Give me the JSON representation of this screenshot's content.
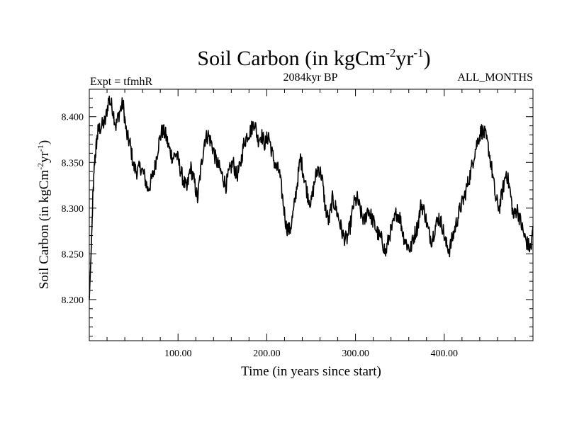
{
  "chart_data": {
    "type": "line",
    "title": {
      "prefix": "Soil Carbon (in kgCm",
      "sup1": "-2",
      "mid": "yr",
      "sup2": "-1",
      "suffix": ")"
    },
    "subtitle_left": "Expt = tfmhR",
    "subtitle_center": "2084kyr BP",
    "subtitle_right": "ALL_MONTHS",
    "xlabel": "Time (in years since start)",
    "ylabel": {
      "prefix": "Soil Carbon (in kgCm",
      "sup1": "-2",
      "mid": "yr",
      "sup2": "-1",
      "suffix": ")"
    },
    "xlim": [
      0,
      500
    ],
    "ylim": [
      8.155,
      8.43
    ],
    "xticks": [
      100,
      200,
      300,
      400
    ],
    "xtick_labels": [
      "100.00",
      "200.00",
      "300.00",
      "400.00"
    ],
    "yticks": [
      8.2,
      8.25,
      8.3,
      8.35,
      8.4
    ],
    "ytick_labels": [
      "8.200",
      "8.250",
      "8.300",
      "8.350",
      "8.400"
    ],
    "grid": false,
    "series": [
      {
        "name": "Soil Carbon",
        "color": "#000000",
        "x": [
          0,
          2,
          4,
          6,
          8,
          10,
          14,
          18,
          22,
          26,
          30,
          34,
          38,
          42,
          46,
          50,
          54,
          58,
          62,
          66,
          70,
          74,
          78,
          82,
          86,
          90,
          94,
          98,
          102,
          106,
          110,
          114,
          118,
          122,
          126,
          130,
          134,
          138,
          142,
          146,
          150,
          154,
          158,
          162,
          166,
          170,
          174,
          178,
          182,
          186,
          190,
          194,
          198,
          202,
          206,
          210,
          214,
          218,
          222,
          226,
          230,
          234,
          238,
          242,
          246,
          250,
          254,
          258,
          262,
          266,
          270,
          274,
          278,
          282,
          286,
          290,
          294,
          298,
          302,
          306,
          310,
          314,
          318,
          322,
          326,
          330,
          334,
          338,
          342,
          346,
          350,
          354,
          358,
          362,
          366,
          370,
          374,
          378,
          382,
          386,
          390,
          394,
          398,
          402,
          406,
          410,
          414,
          418,
          422,
          426,
          430,
          434,
          438,
          442,
          446,
          450,
          454,
          458,
          462,
          466,
          470,
          474,
          478,
          482,
          486,
          490,
          494,
          498,
          500
        ],
        "values": [
          8.2,
          8.25,
          8.31,
          8.35,
          8.37,
          8.385,
          8.39,
          8.395,
          8.42,
          8.41,
          8.39,
          8.405,
          8.415,
          8.38,
          8.37,
          8.345,
          8.34,
          8.345,
          8.335,
          8.32,
          8.33,
          8.345,
          8.37,
          8.385,
          8.38,
          8.365,
          8.355,
          8.36,
          8.345,
          8.33,
          8.32,
          8.345,
          8.33,
          8.31,
          8.345,
          8.375,
          8.38,
          8.37,
          8.355,
          8.345,
          8.335,
          8.325,
          8.34,
          8.35,
          8.335,
          8.345,
          8.37,
          8.38,
          8.385,
          8.395,
          8.375,
          8.38,
          8.37,
          8.38,
          8.36,
          8.345,
          8.34,
          8.31,
          8.28,
          8.275,
          8.295,
          8.325,
          8.355,
          8.335,
          8.315,
          8.305,
          8.33,
          8.345,
          8.335,
          8.3,
          8.285,
          8.31,
          8.3,
          8.285,
          8.27,
          8.265,
          8.28,
          8.305,
          8.31,
          8.295,
          8.285,
          8.3,
          8.29,
          8.28,
          8.27,
          8.265,
          8.25,
          8.27,
          8.28,
          8.295,
          8.29,
          8.27,
          8.26,
          8.255,
          8.27,
          8.28,
          8.305,
          8.295,
          8.275,
          8.265,
          8.28,
          8.29,
          8.28,
          8.26,
          8.255,
          8.27,
          8.285,
          8.3,
          8.31,
          8.325,
          8.34,
          8.36,
          8.375,
          8.385,
          8.38,
          8.365,
          8.34,
          8.31,
          8.3,
          8.32,
          8.34,
          8.32,
          8.29,
          8.3,
          8.285,
          8.27,
          8.26,
          8.255,
          8.28
        ]
      }
    ]
  }
}
